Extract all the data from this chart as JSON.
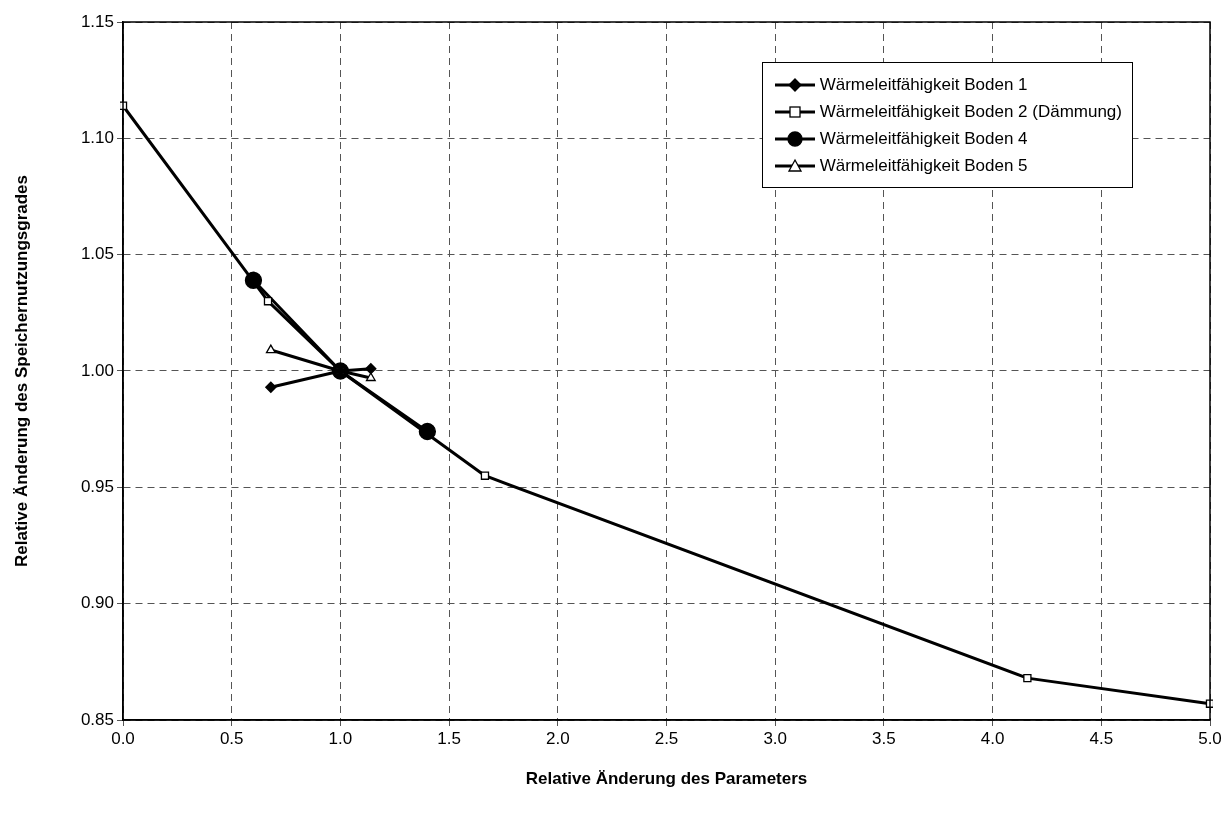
{
  "chart_data": {
    "type": "line",
    "xlabel": "Relative Änderung des Parameters",
    "ylabel": "Relative Änderung des Speichernutzungsgrades",
    "xlim": [
      0,
      5
    ],
    "xticks": [
      {
        "value": 0,
        "label": "0.0"
      },
      {
        "value": 0.5,
        "label": "0.5"
      },
      {
        "value": 1,
        "label": "1.0"
      },
      {
        "value": 1.5,
        "label": "1.5"
      },
      {
        "value": 2,
        "label": "2.0"
      },
      {
        "value": 2.5,
        "label": "2.5"
      },
      {
        "value": 3,
        "label": "3.0"
      },
      {
        "value": 3.5,
        "label": "3.5"
      },
      {
        "value": 4,
        "label": "4.0"
      },
      {
        "value": 4.5,
        "label": "4.5"
      },
      {
        "value": 5,
        "label": "5.0"
      }
    ],
    "ylim": [
      0.85,
      1.15
    ],
    "yticks": [
      {
        "value": 0.85,
        "label": "0.85"
      },
      {
        "value": 0.9,
        "label": "0.90"
      },
      {
        "value": 0.95,
        "label": "0.95"
      },
      {
        "value": 1,
        "label": "1.00"
      },
      {
        "value": 1.05,
        "label": "1.05"
      },
      {
        "value": 1.1,
        "label": "1.10"
      },
      {
        "value": 1.15,
        "label": "1.15"
      }
    ],
    "grid": true,
    "legend": "top right",
    "line_style": "solid",
    "series": [
      {
        "name": "Wärmeleitfähigkeit Boden 1",
        "color": "#000000",
        "marker": "diamond",
        "x": [
          0.68,
          1,
          1.14
        ],
        "values": [
          0.993,
          1,
          1.001
        ]
      },
      {
        "name": "Wärmeleitfähigkeit Boden 2 (Dämmung)",
        "color": "#000000",
        "marker": "square",
        "x": [
          0,
          0.667,
          1,
          1.665,
          4.16,
          5
        ],
        "values": [
          1.114,
          1.03,
          1,
          0.955,
          0.868,
          0.857
        ]
      },
      {
        "name": "Wärmeleitfähigkeit Boden 4",
        "color": "#000000",
        "marker": "circle",
        "x": [
          0.6,
          1,
          1.4
        ],
        "values": [
          1.039,
          1,
          0.974
        ]
      },
      {
        "name": "Wärmeleitfähigkeit Boden 5",
        "color": "#000000",
        "marker": "triangle",
        "x": [
          0.68,
          1,
          1.14
        ],
        "values": [
          1.009,
          1,
          0.997
        ]
      }
    ]
  }
}
